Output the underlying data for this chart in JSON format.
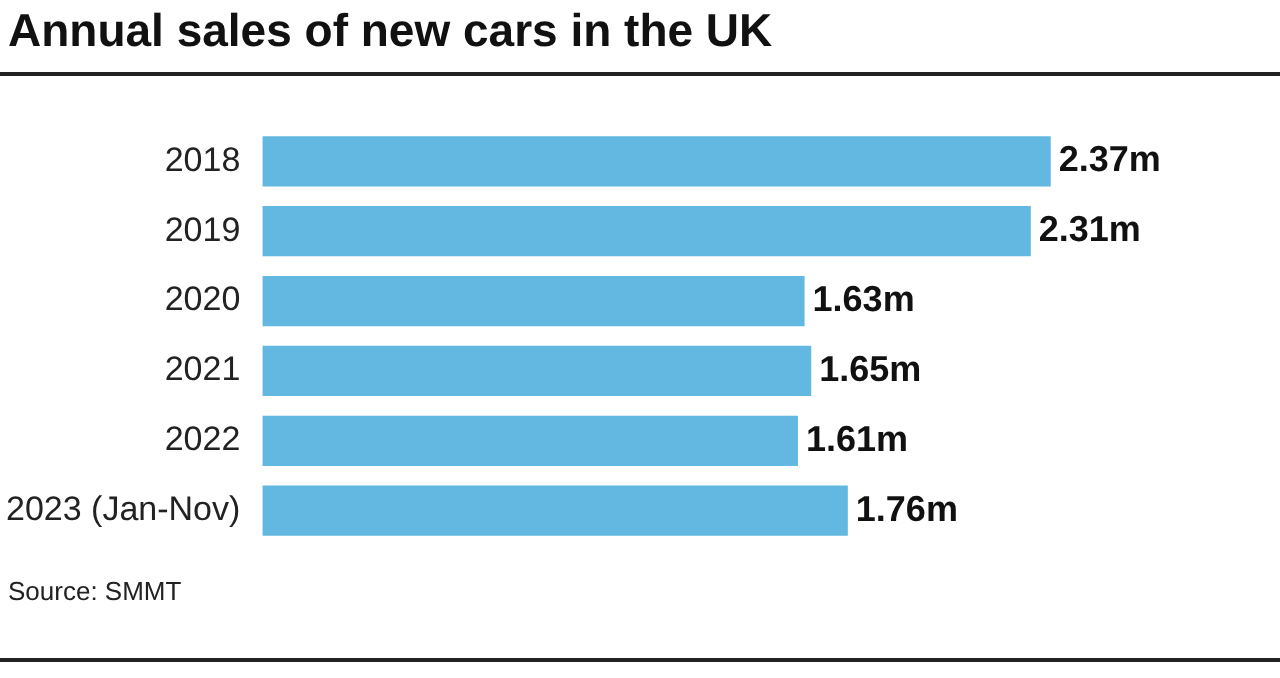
{
  "chart_data": {
    "type": "bar",
    "orientation": "horizontal",
    "title": "Annual sales of new cars in the UK",
    "categories": [
      "2018",
      "2019",
      "2020",
      "2021",
      "2022",
      "2023 (Jan-Nov)"
    ],
    "values": [
      2.37,
      2.31,
      1.63,
      1.65,
      1.61,
      1.76
    ],
    "value_labels": [
      "2.37m",
      "2.31m",
      "1.63m",
      "1.65m",
      "1.61m",
      "1.76m"
    ],
    "color": "#62b8e0",
    "tick_labels": "y",
    "legend": false,
    "annotations": [
      "Source: SMMT"
    ]
  }
}
